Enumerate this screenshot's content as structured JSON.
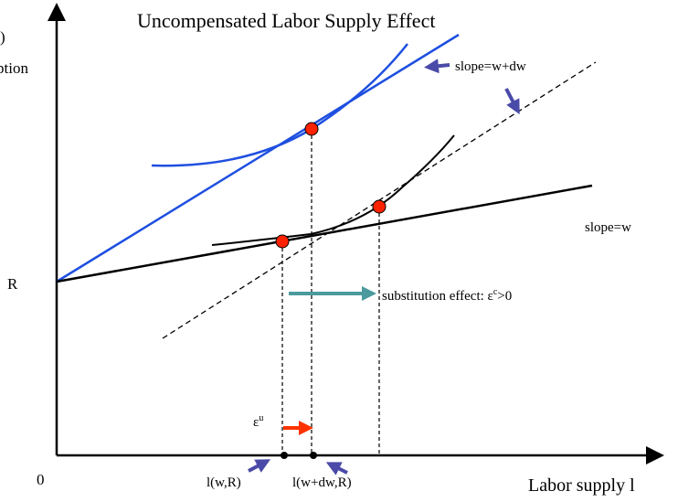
{
  "title": "Uncompensated Labor Supply Effect",
  "y_axis_label": {
    "line1": ")",
    "line2": "ption"
  },
  "labels": {
    "slope_high": "slope=w+dw",
    "slope_low": "slope=w",
    "intercept": "R",
    "origin": "0",
    "substitution": {
      "text": "substitution effect: ε",
      "sup": "c",
      "rest": ">0"
    },
    "uncompensated": {
      "text": "ε",
      "sup": "u"
    },
    "l_low": "l(w,R)",
    "l_high": "l(w+dw,R)",
    "x_axis_label": "Labor supply l"
  }
}
